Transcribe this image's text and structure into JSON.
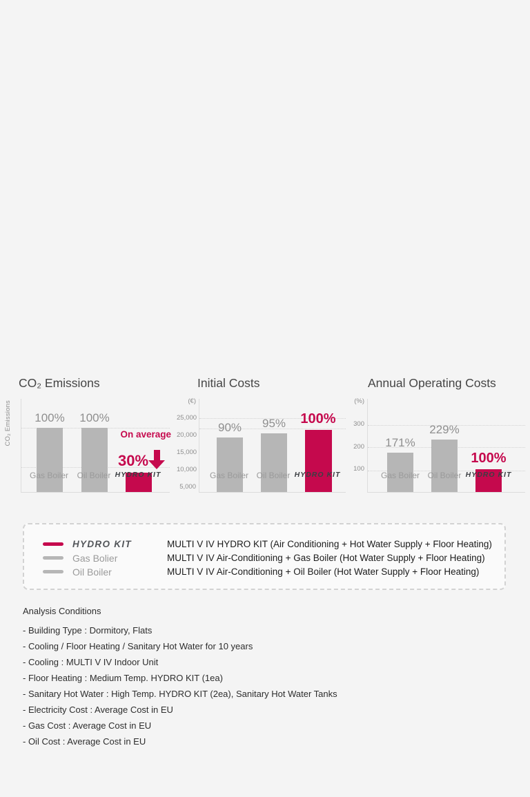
{
  "colors": {
    "background": "#f4f4f4",
    "bar_gray": "#b6b6b6",
    "accent_red": "#c5094d",
    "axis_gray": "#dcdcdc",
    "value_label_gray": "#8f8f8f",
    "text_dark": "#1b1b1b"
  },
  "chart_data": [
    {
      "type": "bar",
      "title": "CO₂ Emissions",
      "ylabel": "CO₂ Emissions",
      "unit": "%",
      "grid": "dotted",
      "categories": [
        "Gas Boiler",
        "Oil Boiler",
        "HYDRO KIT"
      ],
      "bars": [
        {
          "category": "Gas Boiler",
          "value": 100,
          "label": "100%",
          "color": "gray"
        },
        {
          "category": "Oil Boiler",
          "value": 100,
          "label": "100%",
          "color": "gray"
        },
        {
          "category": "HYDRO KIT",
          "value": 30,
          "label": "30%",
          "color": "red"
        }
      ],
      "annotation": "On average",
      "annotation_icon": "down-arrow"
    },
    {
      "type": "bar",
      "title": "Initial Costs",
      "unit_label": "(€)",
      "unit": "EUR",
      "grid": "dotted",
      "yticks": [
        "25,000",
        "20,000",
        "15,000",
        "10,000",
        "5,000"
      ],
      "categories": [
        "Gas Boiler",
        "Oil Boiler",
        "HYDRO KIT"
      ],
      "bars": [
        {
          "category": "Gas Boiler",
          "value": 19300,
          "label": "90%",
          "color": "gray"
        },
        {
          "category": "Oil Boiler",
          "value": 20500,
          "label": "95%",
          "color": "gray"
        },
        {
          "category": "HYDRO KIT",
          "value": 21600,
          "label": "100%",
          "color": "red"
        }
      ]
    },
    {
      "type": "bar",
      "title": "Annual Operating Costs",
      "unit_label": "(%)",
      "unit": "%",
      "grid": "dotted",
      "yticks": [
        "300",
        "200",
        "100"
      ],
      "categories": [
        "Gas Boiler",
        "Oil Boiler",
        "HYDRO KIT"
      ],
      "bars": [
        {
          "category": "Gas Boiler",
          "value": 171,
          "label": "171%",
          "color": "gray"
        },
        {
          "category": "Oil Boiler",
          "value": 229,
          "label": "229%",
          "color": "gray"
        },
        {
          "category": "HYDRO KIT",
          "value": 100,
          "label": "100%",
          "color": "red"
        }
      ]
    }
  ],
  "legend": {
    "items": [
      {
        "swatch": "red",
        "label": "HYDRO KIT",
        "description": "MULTI V IV HYDRO KIT (Air Conditioning + Hot Water Supply + Floor Heating)"
      },
      {
        "swatch": "gray",
        "label": "Gas Bolier",
        "description": "MULTI V IV Air-Conditioning + Gas Boiler (Hot Water Supply + Floor Heating)"
      },
      {
        "swatch": "gray",
        "label": "Oil Boiler",
        "description": "MULTI V IV Air-Conditioning + Oil Boiler (Hot Water Supply + Floor Heating)"
      }
    ]
  },
  "conditions": {
    "heading": "Analysis Conditions",
    "items": [
      "- Building Type : Dormitory, Flats",
      "- Cooling / Floor Heating / Sanitary Hot Water for 10 years",
      "- Cooling : MULTI V IV Indoor Unit",
      "- Floor Heating : Medium Temp. HYDRO KIT (1ea)",
      "- Sanitary Hot Water : High Temp. HYDRO KIT (2ea), Sanitary Hot Water Tanks",
      "- Electricity Cost : Average Cost in EU",
      "- Gas Cost : Average Cost in EU",
      "- Oil Cost : Average Cost in EU"
    ]
  }
}
